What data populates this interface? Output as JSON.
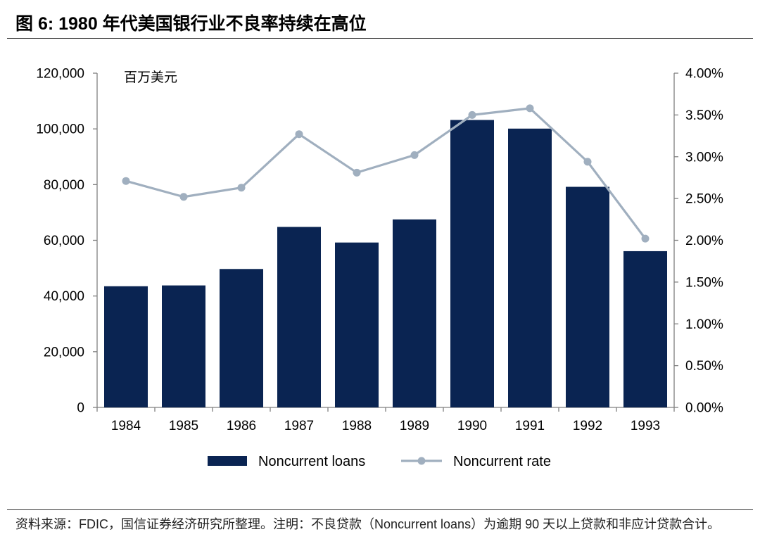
{
  "header": {
    "title": "图 6: 1980 年代美国银行业不良率持续在高位"
  },
  "footer": {
    "source": "资料来源：FDIC，国信证券经济研究所整理。注明：不良贷款（Noncurrent loans）为逾期 90 天以上贷款和非应计贷款合计。"
  },
  "chart_data": {
    "type": "bar",
    "title": "",
    "categories": [
      "1984",
      "1985",
      "1986",
      "1987",
      "1988",
      "1989",
      "1990",
      "1991",
      "1992",
      "1993"
    ],
    "unit_label": "百万美元",
    "series": [
      {
        "name": "Noncurrent loans",
        "type": "bar",
        "axis": "left",
        "color": "#0a2452",
        "values": [
          43500,
          43800,
          49700,
          64800,
          59200,
          67500,
          103200,
          100100,
          79200,
          56100
        ]
      },
      {
        "name": "Noncurrent rate",
        "type": "line",
        "axis": "right",
        "color": "#a0afbf",
        "values": [
          0.0271,
          0.0252,
          0.0263,
          0.0327,
          0.0281,
          0.0302,
          0.035,
          0.0358,
          0.0294,
          0.0202
        ]
      }
    ],
    "y_left": {
      "min": 0,
      "max": 120000,
      "step": 20000,
      "tick_labels": [
        "0",
        "20,000",
        "40,000",
        "60,000",
        "80,000",
        "100,000",
        "120,000"
      ]
    },
    "y_right": {
      "min": 0,
      "max": 0.04,
      "step": 0.005,
      "tick_labels": [
        "0.00%",
        "0.50%",
        "1.00%",
        "1.50%",
        "2.00%",
        "2.50%",
        "3.00%",
        "3.50%",
        "4.00%"
      ]
    },
    "grid": false,
    "legend_position": "bottom"
  }
}
